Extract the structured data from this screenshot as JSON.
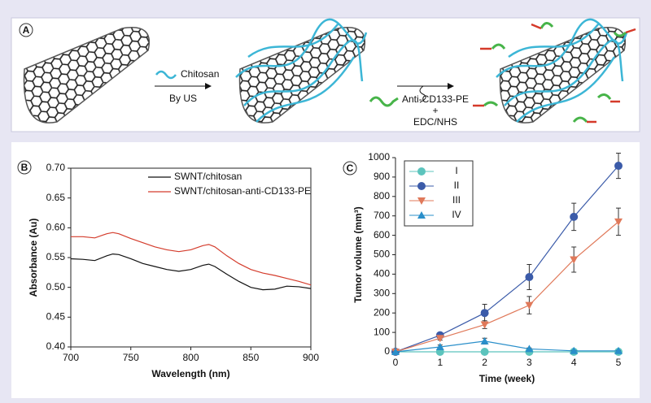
{
  "panel_labels": [
    "A",
    "B",
    "C"
  ],
  "scheme": {
    "step1_reagent": "Chitosan",
    "step1_method": "By US",
    "step2_reagent": "Anti-CD133-PE",
    "step2_plus": "+",
    "step2_method": "EDC/NHS"
  },
  "chart_data": [
    {
      "type": "line",
      "xlabel": "Wavelength (nm)",
      "ylabel": "Absorbance (Au)",
      "frame": true,
      "legend": "upper right",
      "x": [
        700,
        710,
        720,
        730,
        735,
        740,
        750,
        760,
        770,
        780,
        790,
        800,
        810,
        815,
        820,
        830,
        840,
        850,
        860,
        870,
        880,
        890,
        900
      ],
      "xlim": [
        700,
        900
      ],
      "xticks": [
        700,
        750,
        800,
        850,
        900
      ],
      "ylim": [
        0.4,
        0.7
      ],
      "yticks": [
        {
          "value": 0.4,
          "label": "0.40"
        },
        0.45,
        {
          "value": 0.5,
          "label": "0.50"
        },
        0.55,
        {
          "value": 0.6,
          "label": "0.60"
        },
        0.65,
        {
          "value": 0.7,
          "label": "0.70"
        }
      ],
      "series": [
        {
          "name": "SWNT/chitosan",
          "color": "#111111",
          "values": [
            0.548,
            0.547,
            0.545,
            0.553,
            0.556,
            0.555,
            0.548,
            0.54,
            0.535,
            0.53,
            0.527,
            0.53,
            0.537,
            0.539,
            0.535,
            0.522,
            0.51,
            0.5,
            0.496,
            0.497,
            0.502,
            0.501,
            0.498
          ]
        },
        {
          "name": "SWNT/chitosan-anti-CD133-PE",
          "color": "#d43c2c",
          "values": [
            0.585,
            0.585,
            0.583,
            0.59,
            0.592,
            0.59,
            0.582,
            0.575,
            0.568,
            0.563,
            0.56,
            0.563,
            0.57,
            0.572,
            0.568,
            0.553,
            0.54,
            0.53,
            0.524,
            0.52,
            0.515,
            0.51,
            0.504
          ]
        }
      ]
    },
    {
      "type": "line",
      "xlabel": "Time (week)",
      "ylabel": "Tumor volume (mm³)",
      "frame": false,
      "legend": "upper left",
      "x": [
        0,
        1,
        2,
        3,
        4,
        5
      ],
      "xlim": [
        0,
        5
      ],
      "xticks": [
        0,
        1,
        2,
        3,
        4,
        5
      ],
      "ylim": [
        0,
        1000
      ],
      "yticks": [
        0,
        100,
        200,
        300,
        400,
        500,
        600,
        700,
        800,
        900,
        1000
      ],
      "series": [
        {
          "name": "I",
          "color": "#5cc4bd",
          "marker": "circle",
          "values": [
            0,
            0,
            0,
            0,
            0,
            0
          ],
          "errors": [
            0,
            0,
            0,
            0,
            0,
            0
          ]
        },
        {
          "name": "II",
          "color": "#3b5ba9",
          "marker": "circle",
          "values": [
            0,
            85,
            200,
            385,
            695,
            958
          ],
          "errors": [
            5,
            10,
            45,
            65,
            70,
            65
          ]
        },
        {
          "name": "III",
          "color": "#e0795a",
          "marker": "triangle-down",
          "values": [
            0,
            70,
            140,
            240,
            475,
            670
          ],
          "errors": [
            5,
            10,
            20,
            45,
            65,
            70
          ]
        },
        {
          "name": "IV",
          "color": "#2a8fca",
          "marker": "triangle-up",
          "values": [
            0,
            25,
            55,
            15,
            5,
            5
          ],
          "errors": [
            0,
            10,
            15,
            5,
            0,
            0
          ]
        }
      ]
    }
  ]
}
